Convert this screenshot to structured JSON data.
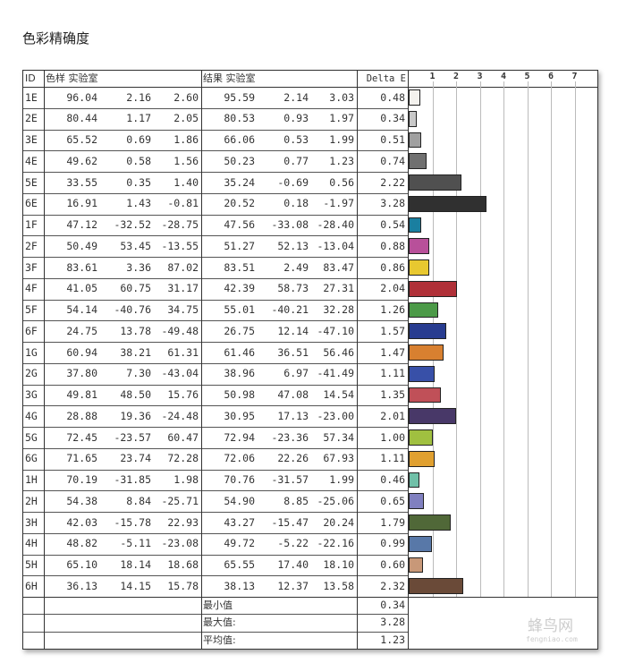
{
  "title": "色彩精确度",
  "headers": {
    "id": "ID",
    "sample": "色样 实验室",
    "result": "结果 实验室",
    "delta": "Delta E"
  },
  "rows": [
    [
      "1E",
      "96.04",
      "2.16",
      "2.60",
      "95.59",
      "2.14",
      "3.03",
      "0.48"
    ],
    [
      "2E",
      "80.44",
      "1.17",
      "2.05",
      "80.53",
      "0.93",
      "1.97",
      "0.34"
    ],
    [
      "3E",
      "65.52",
      "0.69",
      "1.86",
      "66.06",
      "0.53",
      "1.99",
      "0.51"
    ],
    [
      "4E",
      "49.62",
      "0.58",
      "1.56",
      "50.23",
      "0.77",
      "1.23",
      "0.74"
    ],
    [
      "5E",
      "33.55",
      "0.35",
      "1.40",
      "35.24",
      "-0.69",
      "0.56",
      "2.22"
    ],
    [
      "6E",
      "16.91",
      "1.43",
      "-0.81",
      "20.52",
      "0.18",
      "-1.97",
      "3.28"
    ],
    [
      "1F",
      "47.12",
      "-32.52",
      "-28.75",
      "47.56",
      "-33.08",
      "-28.40",
      "0.54"
    ],
    [
      "2F",
      "50.49",
      "53.45",
      "-13.55",
      "51.27",
      "52.13",
      "-13.04",
      "0.88"
    ],
    [
      "3F",
      "83.61",
      "3.36",
      "87.02",
      "83.51",
      "2.49",
      "83.47",
      "0.86"
    ],
    [
      "4F",
      "41.05",
      "60.75",
      "31.17",
      "42.39",
      "58.73",
      "27.31",
      "2.04"
    ],
    [
      "5F",
      "54.14",
      "-40.76",
      "34.75",
      "55.01",
      "-40.21",
      "32.28",
      "1.26"
    ],
    [
      "6F",
      "24.75",
      "13.78",
      "-49.48",
      "26.75",
      "12.14",
      "-47.10",
      "1.57"
    ],
    [
      "1G",
      "60.94",
      "38.21",
      "61.31",
      "61.46",
      "36.51",
      "56.46",
      "1.47"
    ],
    [
      "2G",
      "37.80",
      "7.30",
      "-43.04",
      "38.96",
      "6.97",
      "-41.49",
      "1.11"
    ],
    [
      "3G",
      "49.81",
      "48.50",
      "15.76",
      "50.98",
      "47.08",
      "14.54",
      "1.35"
    ],
    [
      "4G",
      "28.88",
      "19.36",
      "-24.48",
      "30.95",
      "17.13",
      "-23.00",
      "2.01"
    ],
    [
      "5G",
      "72.45",
      "-23.57",
      "60.47",
      "72.94",
      "-23.36",
      "57.34",
      "1.00"
    ],
    [
      "6G",
      "71.65",
      "23.74",
      "72.28",
      "72.06",
      "22.26",
      "67.93",
      "1.11"
    ],
    [
      "1H",
      "70.19",
      "-31.85",
      "1.98",
      "70.76",
      "-31.57",
      "1.99",
      "0.46"
    ],
    [
      "2H",
      "54.38",
      "8.84",
      "-25.71",
      "54.90",
      "8.85",
      "-25.06",
      "0.65"
    ],
    [
      "3H",
      "42.03",
      "-15.78",
      "22.93",
      "43.27",
      "-15.47",
      "20.24",
      "1.79"
    ],
    [
      "4H",
      "48.82",
      "-5.11",
      "-23.08",
      "49.72",
      "-5.22",
      "-22.16",
      "0.99"
    ],
    [
      "5H",
      "65.10",
      "18.14",
      "18.68",
      "65.55",
      "17.40",
      "18.10",
      "0.60"
    ],
    [
      "6H",
      "36.13",
      "14.15",
      "15.78",
      "38.13",
      "12.37",
      "13.58",
      "2.32"
    ]
  ],
  "summary": [
    {
      "label": "最小值",
      "value": "0.34"
    },
    {
      "label": "最大值:",
      "value": "3.28"
    },
    {
      "label": "平均值:",
      "value": "1.23"
    }
  ],
  "chart_data": {
    "type": "bar",
    "orientation": "horizontal",
    "categories": [
      "1E",
      "2E",
      "3E",
      "4E",
      "5E",
      "6E",
      "1F",
      "2F",
      "3F",
      "4F",
      "5F",
      "6F",
      "1G",
      "2G",
      "3G",
      "4G",
      "5G",
      "6G",
      "1H",
      "2H",
      "3H",
      "4H",
      "5H",
      "6H"
    ],
    "values": [
      0.48,
      0.34,
      0.51,
      0.74,
      2.22,
      3.28,
      0.54,
      0.88,
      0.86,
      2.04,
      1.26,
      1.57,
      1.47,
      1.11,
      1.35,
      2.01,
      1.0,
      1.11,
      0.46,
      0.65,
      1.79,
      0.99,
      0.6,
      2.32
    ],
    "colors": [
      "#f4f2ee",
      "#c8c8c8",
      "#a0a0a0",
      "#707070",
      "#505050",
      "#303030",
      "#1a7fa0",
      "#b8509a",
      "#e8c830",
      "#b03038",
      "#4c9a48",
      "#283c90",
      "#d88030",
      "#3850a8",
      "#c05058",
      "#483868",
      "#a0c040",
      "#e0a030",
      "#70c0a8",
      "#8080c0",
      "#506838",
      "#5878a8",
      "#c89878",
      "#6a4a38"
    ],
    "xticks": [
      "1",
      "2",
      "3",
      "4",
      "5",
      "6",
      "7"
    ],
    "xlim": [
      0,
      8
    ],
    "grid": true
  },
  "watermark": {
    "cn": "蜂鸟网",
    "en": "fengniao.com"
  }
}
